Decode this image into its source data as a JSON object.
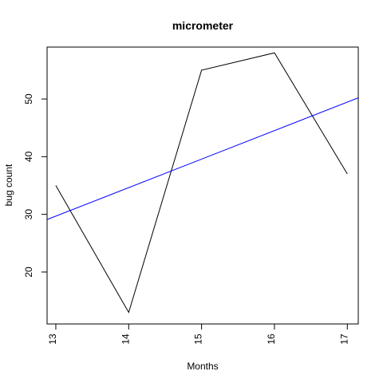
{
  "chart_data": {
    "type": "line",
    "title": "micrometer",
    "xlabel": "Months",
    "ylabel": "bug count",
    "x": [
      13,
      14,
      15,
      16,
      17
    ],
    "xlim": [
      12.88,
      17.15
    ],
    "ylim": [
      11,
      59
    ],
    "x_ticks": [
      13,
      14,
      15,
      16,
      17
    ],
    "y_ticks": [
      20,
      30,
      40,
      50
    ],
    "grid": false,
    "series": [
      {
        "values": [
          35,
          13,
          55,
          58,
          37
        ],
        "color": "#000000"
      }
    ],
    "reference_lines": [
      {
        "kind": "regression",
        "start": [
          12.88,
          29.1
        ],
        "end": [
          17.15,
          50.2
        ],
        "color": "#0000ff"
      }
    ]
  }
}
